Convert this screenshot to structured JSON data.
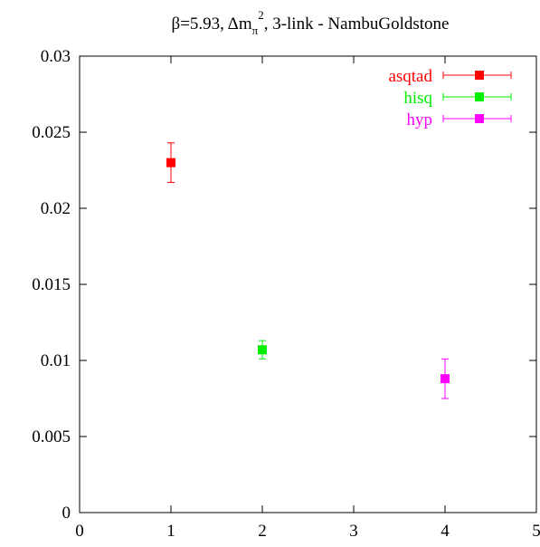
{
  "chart_data": {
    "type": "scatter",
    "title": "β=5.93, Δm",
    "title_sub": "π",
    "title_sup": "2",
    "title_rest": ", 3-link - NambuGoldstone",
    "xlabel": "",
    "ylabel": "",
    "xlim": [
      0,
      5
    ],
    "ylim": [
      0,
      0.03
    ],
    "x_ticks": [
      "0",
      "1",
      "2",
      "3",
      "4",
      "5"
    ],
    "y_ticks": [
      "0",
      "0.005",
      "0.01",
      "0.015",
      "0.02",
      "0.025",
      "0.03"
    ],
    "grid": false,
    "legend_position": "top-right",
    "series": [
      {
        "name": "asqtad",
        "color": "#ff0000",
        "points": [
          {
            "x": 1,
            "y": 0.023,
            "err": 0.0013
          }
        ]
      },
      {
        "name": "hisq",
        "color": "#00ee00",
        "points": [
          {
            "x": 2,
            "y": 0.0107,
            "err": 0.0006
          }
        ]
      },
      {
        "name": "hyp",
        "color": "#ff00ff",
        "points": [
          {
            "x": 4,
            "y": 0.0088,
            "err": 0.0013
          }
        ]
      }
    ]
  }
}
